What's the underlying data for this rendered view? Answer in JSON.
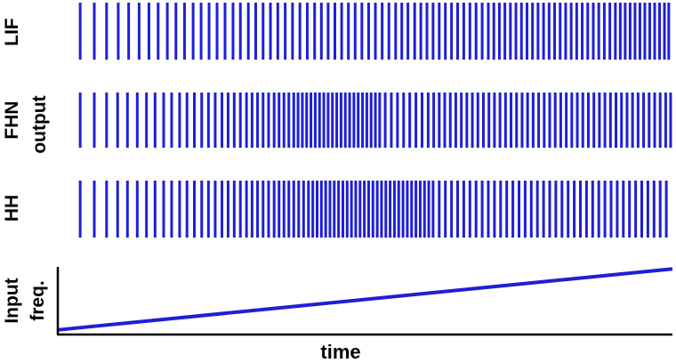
{
  "chart_data": {
    "type": "raster",
    "xlabel": "time",
    "ylabel_group": "output",
    "color": "#1f1fd6",
    "axis_color": "#000000",
    "x_range": [
      0,
      1
    ],
    "rows": [
      {
        "name": "LIF",
        "spike_times": [
          0.035,
          0.058,
          0.078,
          0.097,
          0.114,
          0.131,
          0.147,
          0.162,
          0.177,
          0.191,
          0.205,
          0.219,
          0.232,
          0.245,
          0.258,
          0.271,
          0.284,
          0.296,
          0.309,
          0.321,
          0.333,
          0.345,
          0.357,
          0.369,
          0.381,
          0.393,
          0.405,
          0.417,
          0.428,
          0.439,
          0.45,
          0.461,
          0.472,
          0.483,
          0.494,
          0.505,
          0.516,
          0.527,
          0.538,
          0.549,
          0.559,
          0.569,
          0.58,
          0.59,
          0.6,
          0.61,
          0.62,
          0.63,
          0.64,
          0.65,
          0.66,
          0.67,
          0.68,
          0.69,
          0.7,
          0.709,
          0.718,
          0.727,
          0.736,
          0.745,
          0.754,
          0.763,
          0.772,
          0.781,
          0.79,
          0.799,
          0.808,
          0.817,
          0.826,
          0.835,
          0.844,
          0.853,
          0.862,
          0.871,
          0.88,
          0.889,
          0.898,
          0.907,
          0.915,
          0.923,
          0.931,
          0.939,
          0.947,
          0.955,
          0.963,
          0.971,
          0.979,
          0.987,
          0.994
        ]
      },
      {
        "name": "FHN",
        "spike_times": [
          0.035,
          0.058,
          0.078,
          0.096,
          0.112,
          0.128,
          0.143,
          0.157,
          0.171,
          0.184,
          0.197,
          0.209,
          0.221,
          0.233,
          0.244,
          0.255,
          0.266,
          0.276,
          0.286,
          0.296,
          0.306,
          0.315,
          0.324,
          0.333,
          0.342,
          0.351,
          0.359,
          0.367,
          0.375,
          0.383,
          0.39,
          0.397,
          0.404,
          0.411,
          0.418,
          0.425,
          0.432,
          0.439,
          0.446,
          0.453,
          0.46,
          0.467,
          0.474,
          0.481,
          0.488,
          0.495,
          0.502,
          0.509,
          0.516,
          0.523,
          0.532,
          0.542,
          0.552,
          0.562,
          0.572,
          0.582,
          0.592,
          0.602,
          0.611,
          0.62,
          0.629,
          0.638,
          0.647,
          0.656,
          0.665,
          0.674,
          0.683,
          0.692,
          0.701,
          0.71,
          0.719,
          0.728,
          0.737,
          0.746,
          0.755,
          0.764,
          0.773,
          0.782,
          0.791,
          0.8,
          0.809,
          0.818,
          0.827,
          0.836,
          0.845,
          0.854,
          0.863,
          0.872,
          0.881,
          0.89,
          0.899,
          0.908,
          0.917,
          0.926,
          0.935,
          0.944,
          0.953,
          0.962,
          0.971,
          0.98,
          0.989,
          0.997
        ]
      },
      {
        "name": "HH",
        "spike_times": [
          0.035,
          0.058,
          0.078,
          0.096,
          0.112,
          0.128,
          0.143,
          0.157,
          0.171,
          0.184,
          0.197,
          0.209,
          0.221,
          0.233,
          0.244,
          0.255,
          0.266,
          0.276,
          0.286,
          0.296,
          0.306,
          0.315,
          0.324,
          0.333,
          0.342,
          0.351,
          0.359,
          0.367,
          0.375,
          0.383,
          0.391,
          0.399,
          0.407,
          0.414,
          0.421,
          0.428,
          0.435,
          0.442,
          0.449,
          0.456,
          0.463,
          0.47,
          0.477,
          0.484,
          0.491,
          0.498,
          0.505,
          0.512,
          0.519,
          0.526,
          0.533,
          0.54,
          0.547,
          0.554,
          0.561,
          0.568,
          0.575,
          0.582,
          0.589,
          0.596,
          0.603,
          0.61,
          0.62,
          0.63,
          0.64,
          0.65,
          0.66,
          0.67,
          0.68,
          0.69,
          0.7,
          0.71,
          0.72,
          0.73,
          0.74,
          0.75,
          0.76,
          0.77,
          0.78,
          0.79,
          0.8,
          0.81,
          0.82,
          0.83,
          0.84,
          0.85,
          0.86,
          0.87,
          0.88,
          0.89,
          0.9,
          0.91,
          0.92,
          0.93,
          0.94,
          0.95,
          0.96,
          0.97,
          0.98,
          0.99
        ]
      }
    ],
    "input": {
      "name": "Input freq.",
      "name_lines": [
        "Input",
        "freq."
      ],
      "type": "line",
      "x": [
        0,
        1
      ],
      "y": [
        0.07,
        0.97
      ],
      "ylim": [
        0,
        1
      ]
    }
  }
}
